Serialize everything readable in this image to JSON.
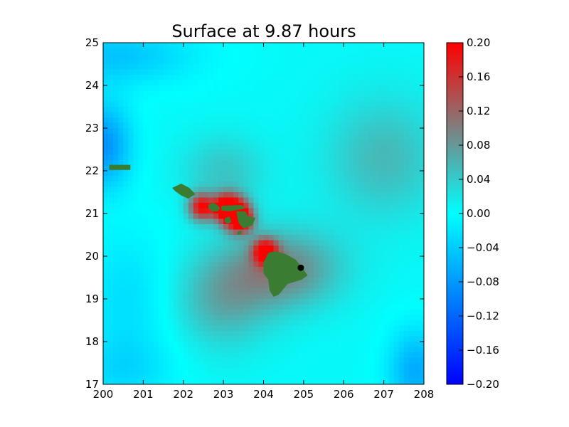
{
  "chart_data": {
    "type": "heatmap",
    "title": "Surface at 9.87 hours",
    "x_ticks": [
      "200",
      "201",
      "202",
      "203",
      "204",
      "205",
      "206",
      "207",
      "208"
    ],
    "y_ticks": [
      "17",
      "18",
      "19",
      "20",
      "21",
      "22",
      "23",
      "24",
      "25"
    ],
    "xlim": [
      200,
      208
    ],
    "ylim": [
      17,
      25
    ],
    "colorbar": {
      "min": -0.2,
      "max": 0.2,
      "ticks": [
        "0.20",
        "0.16",
        "0.12",
        "0.08",
        "0.04",
        "0.00",
        "−0.04",
        "−0.08",
        "−0.12",
        "−0.16",
        "−0.20"
      ],
      "colors": [
        "#0000ff",
        "#00ffff",
        "#7f7f7f",
        "#ff0000"
      ]
    },
    "land_color": "#3a7d32",
    "marker": {
      "x": 204.93,
      "y": 19.73,
      "color": "#000000"
    },
    "islands": [
      {
        "name": "Niihau strip (west)",
        "points": [
          [
            200.15,
            22.14
          ],
          [
            200.68,
            22.14
          ],
          [
            200.68,
            22.02
          ],
          [
            200.15,
            22.02
          ]
        ]
      },
      {
        "name": "Kauai",
        "points": [
          [
            201.72,
            21.6
          ],
          [
            201.95,
            21.7
          ],
          [
            202.15,
            21.6
          ],
          [
            202.3,
            21.45
          ],
          [
            202.12,
            21.35
          ],
          [
            201.95,
            21.42
          ],
          [
            201.8,
            21.52
          ]
        ]
      },
      {
        "name": "Oahu",
        "points": [
          [
            202.62,
            21.2
          ],
          [
            202.75,
            21.25
          ],
          [
            202.85,
            21.2
          ],
          [
            202.92,
            21.12
          ],
          [
            202.85,
            21.05
          ],
          [
            202.72,
            21.05
          ],
          [
            202.63,
            21.12
          ]
        ]
      },
      {
        "name": "Molokai",
        "points": [
          [
            202.95,
            21.18
          ],
          [
            203.45,
            21.2
          ],
          [
            203.55,
            21.12
          ],
          [
            203.15,
            21.05
          ],
          [
            202.95,
            21.07
          ]
        ]
      },
      {
        "name": "Lanai",
        "points": [
          [
            203.05,
            20.9
          ],
          [
            203.15,
            20.93
          ],
          [
            203.2,
            20.8
          ],
          [
            203.1,
            20.75
          ],
          [
            203.02,
            20.82
          ]
        ]
      },
      {
        "name": "Maui",
        "points": [
          [
            203.32,
            21.05
          ],
          [
            203.55,
            21.05
          ],
          [
            203.62,
            20.93
          ],
          [
            203.8,
            20.9
          ],
          [
            203.72,
            20.72
          ],
          [
            203.5,
            20.65
          ],
          [
            203.38,
            20.78
          ]
        ]
      },
      {
        "name": "Kahoolawe",
        "points": [
          [
            203.35,
            20.58
          ],
          [
            203.45,
            20.6
          ],
          [
            203.45,
            20.52
          ],
          [
            203.35,
            20.5
          ]
        ]
      },
      {
        "name": "Hawaii",
        "points": [
          [
            204.12,
            20.08
          ],
          [
            204.3,
            20.12
          ],
          [
            204.55,
            20.05
          ],
          [
            204.8,
            19.92
          ],
          [
            204.95,
            19.75
          ],
          [
            205.1,
            19.55
          ],
          [
            204.95,
            19.45
          ],
          [
            204.6,
            19.35
          ],
          [
            204.38,
            19.1
          ],
          [
            204.25,
            19.05
          ],
          [
            204.15,
            19.2
          ],
          [
            204.12,
            19.45
          ],
          [
            204.0,
            19.6
          ],
          [
            204.0,
            19.85
          ]
        ]
      }
    ],
    "hot_spots": [
      {
        "x": 202.45,
        "y": 21.15,
        "r": 0.32,
        "amp": 0.18
      },
      {
        "x": 203.25,
        "y": 21.05,
        "r": 0.38,
        "amp": 0.2
      },
      {
        "x": 203.45,
        "y": 20.85,
        "r": 0.3,
        "amp": 0.16
      },
      {
        "x": 204.05,
        "y": 20.1,
        "r": 0.3,
        "amp": 0.19
      },
      {
        "x": 203.0,
        "y": 21.15,
        "r": 0.3,
        "amp": 0.13
      }
    ],
    "gray_band": [
      {
        "x": 204.5,
        "y": 19.7,
        "sx": 1.4,
        "sy": 0.9,
        "amp": 0.09
      },
      {
        "x": 207.0,
        "y": 22.3,
        "sx": 1.4,
        "sy": 1.4,
        "amp": 0.05
      },
      {
        "x": 203.0,
        "y": 19.0,
        "sx": 1.2,
        "sy": 1.1,
        "amp": 0.06
      },
      {
        "x": 203.0,
        "y": 22.0,
        "sx": 1.0,
        "sy": 0.8,
        "amp": 0.04
      }
    ],
    "cool_spots": [
      {
        "x": 200.0,
        "y": 22.6,
        "sx": 0.7,
        "sy": 1.0,
        "amp": -0.09
      },
      {
        "x": 200.3,
        "y": 24.7,
        "sx": 2.0,
        "sy": 0.7,
        "amp": -0.05
      },
      {
        "x": 200.5,
        "y": 17.3,
        "sx": 1.2,
        "sy": 0.8,
        "amp": -0.03
      },
      {
        "x": 207.8,
        "y": 17.3,
        "sx": 0.7,
        "sy": 1.0,
        "amp": -0.07
      },
      {
        "x": 200.6,
        "y": 19.0,
        "sx": 1.2,
        "sy": 1.6,
        "amp": -0.03
      }
    ]
  }
}
